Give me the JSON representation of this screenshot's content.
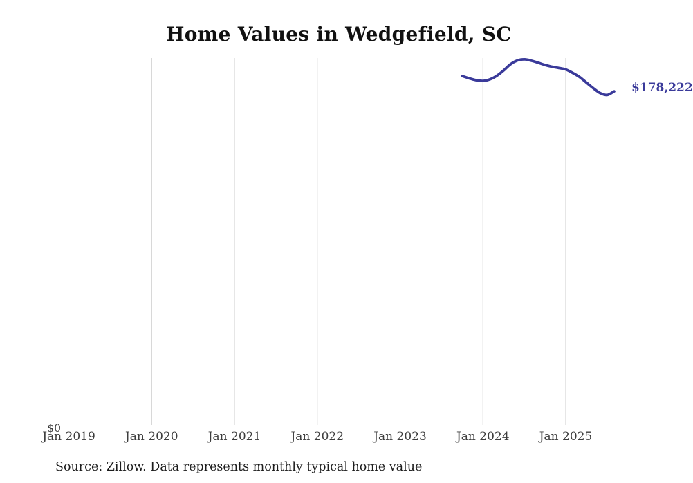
{
  "title": "Home Values in Wedgefield, SC",
  "source_note": "Source: Zillow. Data represents monthly typical home value",
  "latest_value_label": "$178,222",
  "colors": {
    "line": "#3a3a9a",
    "grid": "#cccccc",
    "axis_text": "#3d3d3d",
    "title_text": "#111111",
    "source_text": "#1c1c1c"
  },
  "chart_data": {
    "type": "line",
    "title": "Home Values in Wedgefield, SC",
    "xlabel": "",
    "ylabel": "",
    "ylim": [
      0,
      196000
    ],
    "grid": "vertical",
    "legend": "none",
    "x_ticks": [
      {
        "label": "Jan 2019",
        "gridline": false
      },
      {
        "label": "Jan 2020",
        "gridline": true
      },
      {
        "label": "Jan 2021",
        "gridline": true
      },
      {
        "label": "Jan 2022",
        "gridline": true
      },
      {
        "label": "Jan 2023",
        "gridline": true
      },
      {
        "label": "Jan 2024",
        "gridline": true
      },
      {
        "label": "Jan 2025",
        "gridline": true
      }
    ],
    "y_ticks": [
      {
        "label": "$0",
        "value": 0
      }
    ],
    "series": [
      {
        "name": "Monthly typical home value",
        "x": [
          "2023-10",
          "2023-11",
          "2023-12",
          "2024-01",
          "2024-02",
          "2024-03",
          "2024-04",
          "2024-05",
          "2024-06",
          "2024-07",
          "2024-08",
          "2024-09",
          "2024-10",
          "2024-11",
          "2024-12",
          "2025-01",
          "2025-02",
          "2025-03",
          "2025-04",
          "2025-05",
          "2025-06",
          "2025-07",
          "2025-08"
        ],
        "values": [
          186400,
          185200,
          184200,
          183800,
          184600,
          186500,
          189400,
          192700,
          194700,
          195300,
          194600,
          193500,
          192300,
          191400,
          190700,
          189900,
          188100,
          185900,
          182900,
          179900,
          177300,
          176300,
          178222
        ],
        "end_label": "$178,222"
      }
    ]
  }
}
